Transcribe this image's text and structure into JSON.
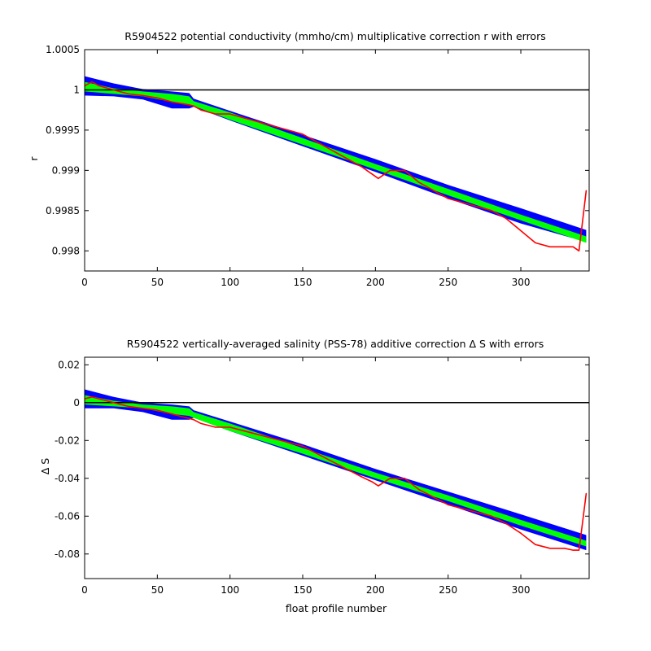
{
  "chart_data": [
    {
      "type": "line",
      "title": "R5904522 potential conductivity (mmho/cm) multiplicative correction r with errors",
      "xlabel": "",
      "ylabel": "r",
      "xlim": [
        0,
        347
      ],
      "ylim": [
        0.99775,
        1.0005
      ],
      "xticks": [
        0,
        50,
        100,
        150,
        200,
        250,
        300
      ],
      "yticks": [
        0.998,
        0.9985,
        0.999,
        0.9995,
        1,
        1.0005
      ],
      "ytick_labels": [
        "0.998",
        "0.9985",
        "0.999",
        "0.9995",
        "1",
        "1.0005"
      ],
      "reference_line": 1,
      "colors": {
        "outer_band": "#0000ff",
        "inner_band": "#00ff00",
        "series": "#ff0000",
        "reference": "#000000"
      },
      "series": [
        {
          "role": "correction",
          "x": [
            0,
            5,
            10,
            20,
            30,
            40,
            50,
            60,
            70,
            75,
            80,
            90,
            100,
            110,
            120,
            130,
            140,
            150,
            160,
            170,
            180,
            190,
            198,
            202,
            206,
            210,
            220,
            230,
            240,
            250,
            260,
            270,
            280,
            290,
            300,
            310,
            320,
            330,
            336,
            340,
            342,
            345
          ],
          "y": [
            1.00005,
            1.0001,
            1.00005,
            1.0,
            0.99995,
            0.99993,
            0.9999,
            0.99985,
            0.99982,
            0.9998,
            0.99975,
            0.9997,
            0.9997,
            0.99965,
            0.9996,
            0.99955,
            0.9995,
            0.99945,
            0.99935,
            0.99925,
            0.99915,
            0.99905,
            0.99895,
            0.9989,
            0.99895,
            0.999,
            0.999,
            0.99885,
            0.99875,
            0.99865,
            0.9986,
            0.99855,
            0.9985,
            0.9984,
            0.99825,
            0.9981,
            0.99805,
            0.99805,
            0.99805,
            0.998,
            0.9983,
            0.99875
          ]
        }
      ],
      "inner_band": {
        "x": [
          0,
          20,
          40,
          60,
          72,
          75,
          100,
          150,
          200,
          250,
          300,
          345
        ],
        "upper": [
          1.0001,
          1.00002,
          0.99998,
          0.99995,
          0.99992,
          0.99986,
          0.99972,
          0.9994,
          0.99908,
          0.99877,
          0.99845,
          0.99818
        ],
        "lower": [
          0.99998,
          0.99995,
          0.99992,
          0.99985,
          0.99982,
          0.9998,
          0.99963,
          0.99932,
          0.99901,
          0.99869,
          0.99838,
          0.9981
        ]
      },
      "outer_band": {
        "x": [
          0,
          20,
          40,
          60,
          72,
          75,
          100,
          150,
          200,
          250,
          300,
          345
        ],
        "upper": [
          1.00017,
          1.00008,
          1.00001,
          0.99998,
          0.99996,
          0.99989,
          0.99974,
          0.99944,
          0.99914,
          0.99882,
          0.99853,
          0.99826
        ],
        "lower": [
          0.99993,
          0.99992,
          0.99988,
          0.99977,
          0.99977,
          0.99979,
          0.99962,
          0.9993,
          0.99898,
          0.99865,
          0.99834,
          0.99811
        ]
      }
    },
    {
      "type": "line",
      "title": "R5904522 vertically-averaged salinity (PSS-78) additive correction Δ S with errors",
      "xlabel": "float profile number",
      "ylabel": "Δ S",
      "xlim": [
        0,
        347
      ],
      "ylim": [
        -0.093,
        0.024
      ],
      "xticks": [
        0,
        50,
        100,
        150,
        200,
        250,
        300
      ],
      "yticks": [
        -0.08,
        -0.06,
        -0.04,
        -0.02,
        0,
        0.02
      ],
      "ytick_labels": [
        "-0.08",
        "-0.06",
        "-0.04",
        "-0.02",
        "0",
        "0.02"
      ],
      "reference_line": 0,
      "colors": {
        "outer_band": "#0000ff",
        "inner_band": "#00ff00",
        "series": "#ff0000",
        "reference": "#000000"
      },
      "series": [
        {
          "role": "correction",
          "x": [
            0,
            5,
            10,
            20,
            30,
            40,
            50,
            60,
            70,
            75,
            80,
            90,
            100,
            110,
            120,
            130,
            140,
            150,
            160,
            170,
            180,
            190,
            198,
            202,
            206,
            210,
            220,
            230,
            240,
            250,
            260,
            270,
            280,
            290,
            300,
            310,
            320,
            330,
            336,
            340,
            342,
            345
          ],
          "y": [
            0.002,
            0.003,
            0.002,
            0.0,
            -0.002,
            -0.003,
            -0.004,
            -0.006,
            -0.008,
            -0.009,
            -0.011,
            -0.013,
            -0.013,
            -0.015,
            -0.017,
            -0.019,
            -0.021,
            -0.023,
            -0.027,
            -0.031,
            -0.035,
            -0.039,
            -0.042,
            -0.044,
            -0.042,
            -0.04,
            -0.04,
            -0.046,
            -0.05,
            -0.054,
            -0.056,
            -0.058,
            -0.06,
            -0.064,
            -0.069,
            -0.075,
            -0.077,
            -0.077,
            -0.078,
            -0.078,
            -0.066,
            -0.048
          ]
        }
      ],
      "inner_band": {
        "x": [
          0,
          20,
          40,
          60,
          72,
          75,
          100,
          150,
          200,
          250,
          300,
          345
        ],
        "upper": [
          0.004,
          0.001,
          -0.001,
          -0.002,
          -0.003,
          -0.005,
          -0.011,
          -0.024,
          -0.037,
          -0.049,
          -0.062,
          -0.073
        ],
        "lower": [
          -0.001,
          -0.002,
          -0.003,
          -0.006,
          -0.007,
          -0.008,
          -0.015,
          -0.027,
          -0.04,
          -0.052,
          -0.065,
          -0.076
        ]
      },
      "outer_band": {
        "x": [
          0,
          20,
          40,
          60,
          72,
          75,
          100,
          150,
          200,
          250,
          300,
          345
        ],
        "upper": [
          0.007,
          0.003,
          0.0,
          -0.001,
          -0.002,
          -0.004,
          -0.01,
          -0.022,
          -0.035,
          -0.047,
          -0.059,
          -0.07
        ],
        "lower": [
          -0.003,
          -0.003,
          -0.005,
          -0.009,
          -0.009,
          -0.008,
          -0.015,
          -0.028,
          -0.041,
          -0.054,
          -0.067,
          -0.078
        ]
      }
    }
  ]
}
